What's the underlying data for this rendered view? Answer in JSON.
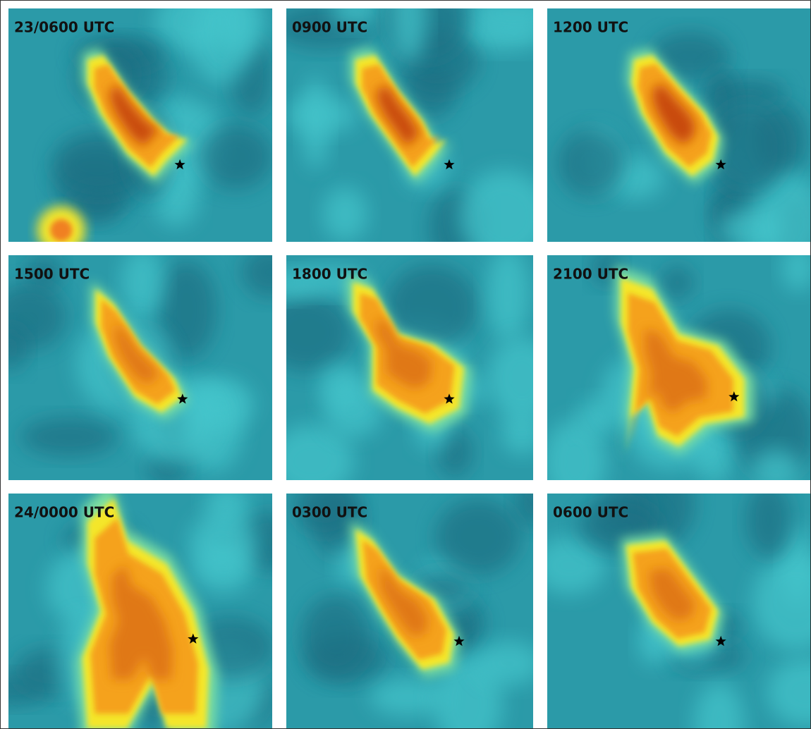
{
  "panels": [
    {
      "label": "23/0600 UTC"
    },
    {
      "label": "0900 UTC"
    },
    {
      "label": "1200 UTC"
    },
    {
      "label": "1500 UTC"
    },
    {
      "label": "1800 UTC"
    },
    {
      "label": "2100 UTC"
    },
    {
      "label": "24/0000 UTC"
    },
    {
      "label": "0300 UTC"
    },
    {
      "label": "0600 UTC"
    }
  ]
}
